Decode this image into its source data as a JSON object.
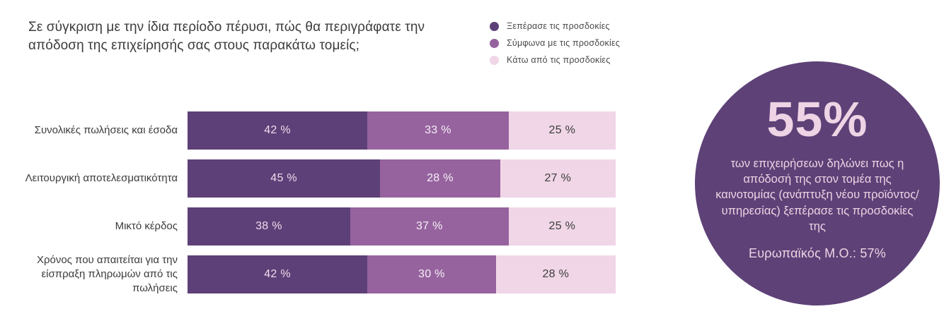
{
  "title": "Σε σύγκριση με την ίδια περίοδο πέρυσι, πώς θα περιγράφατε την απόδοση της επιχείρησής σας στους παρακάτω τομείς;",
  "colors": {
    "exceeded": "#5d4078",
    "in_line": "#96639f",
    "below": "#f0d6e6",
    "text_dark": "#3c3c3b",
    "text_on_dark": "#f0dcea",
    "text_on_medium": "#f8f0f6",
    "circle_bg": "#5e4177",
    "circle_text": "#eed4e4"
  },
  "legend": [
    {
      "label": "Ξεπέρασε τις προσδοκίες",
      "color": "#5d4078"
    },
    {
      "label": "Σύμφωνα με τις προσδοκίες",
      "color": "#96639f"
    },
    {
      "label": "Κάτω από τις προσδοκίες",
      "color": "#f0d6e6"
    }
  ],
  "chart_data": {
    "type": "bar",
    "orientation": "horizontal",
    "stacked": true,
    "xlim": [
      0,
      100
    ],
    "value_suffix": " %",
    "grid": false,
    "legend_position": "top-right",
    "categories": [
      "Συνολικές πωλήσεις και έσοδα",
      "Λειτουργική αποτελεσματικότητα",
      "Μικτό κέρδος",
      "Χρόνος που απαιτείται για την είσπραξη πληρωμών από τις πωλήσεις"
    ],
    "series": [
      {
        "name": "Ξεπέρασε τις προσδοκίες",
        "color": "#5d4078",
        "label_color": "#f0dcea",
        "values": [
          42,
          45,
          38,
          42
        ]
      },
      {
        "name": "Σύμφωνα με τις προσδοκίες",
        "color": "#96639f",
        "label_color": "#f8f0f6",
        "values": [
          33,
          28,
          37,
          30
        ]
      },
      {
        "name": "Κάτω από τις προσδοκίες",
        "color": "#f0d6e6",
        "label_color": "#3c3c3b",
        "values": [
          25,
          27,
          25,
          28
        ]
      }
    ]
  },
  "highlight": {
    "value": "55%",
    "description": "των επιχειρήσεων δηλώνει πως η απόδοσή της στον τομέα της καινοτομίας (ανάπτυξη νέου προϊόντος/υπηρεσίας) ξεπέρασε τις προσδοκίες της",
    "benchmark": "Ευρωπαϊκός Μ.Ο.: 57%"
  }
}
